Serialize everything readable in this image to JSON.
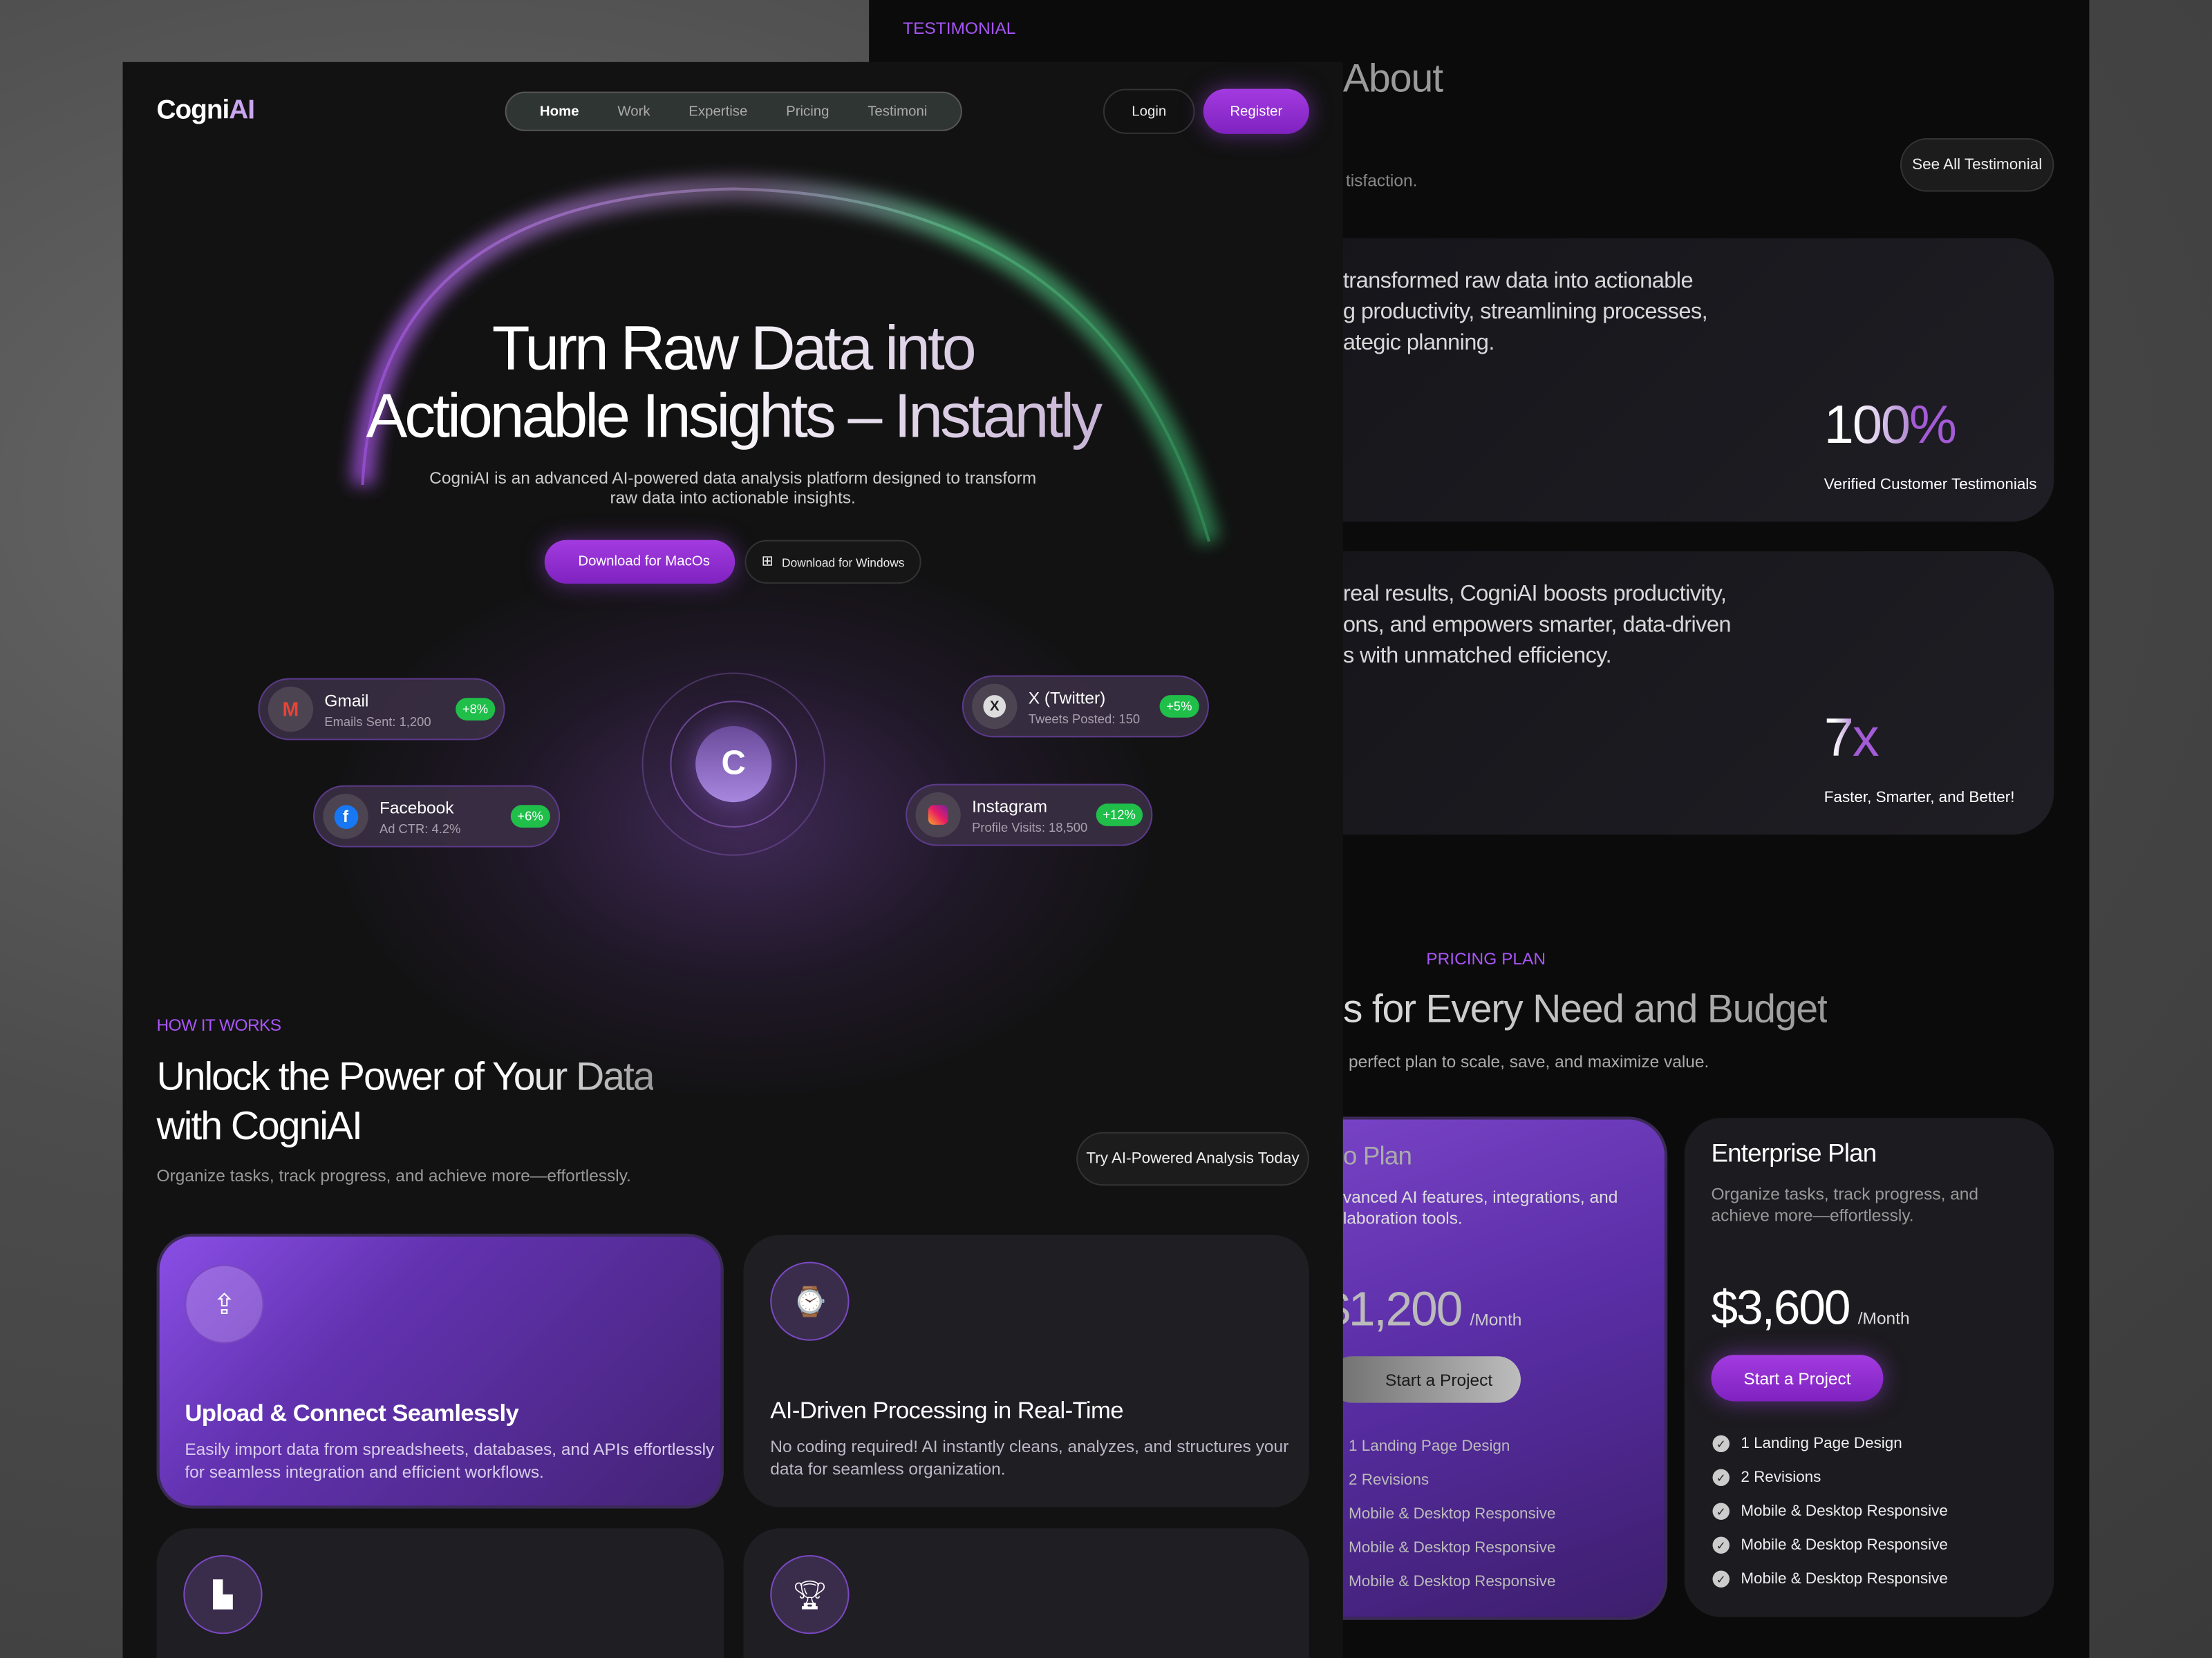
{
  "back_page": {
    "section_label": "TESTIMONIAL",
    "heading_fragment": "About",
    "subtext_fragment": "tisfaction.",
    "see_all_button": "See All Testimonial",
    "testimonials": [
      {
        "lines": [
          "transformed raw data into actionable",
          "g productivity, streamlining processes,",
          "ategic planning."
        ],
        "stat_main": "100",
        "stat_accent": "%",
        "stat_label": "Verified Customer Testimonials"
      },
      {
        "lines": [
          "real results, CogniAI boosts productivity,",
          "ons, and empowers smarter, data-driven",
          "s with unmatched efficiency."
        ],
        "stat_main": "7",
        "stat_accent": "x",
        "stat_label": "Faster, Smarter, and Better!"
      }
    ],
    "pricing": {
      "section_label": "PRICING PLAN",
      "heading_fragment": "s for Every Need and Budget",
      "subtext_fragment": "perfect plan to scale, save, and maximize value.",
      "plans": [
        {
          "name": "o Plan",
          "desc": [
            "vanced AI features, integrations, and",
            "laboration tools."
          ],
          "price": "$1,200",
          "period": "/Month",
          "cta": "Start a Project",
          "features": [
            "1 Landing Page Design",
            "2 Revisions",
            "Mobile & Desktop Responsive",
            "Mobile & Desktop Responsive",
            "Mobile & Desktop Responsive"
          ]
        },
        {
          "name": "Enterprise Plan",
          "desc": [
            "Organize tasks, track progress, and",
            "achieve more—effortlessly."
          ],
          "price": "$3,600",
          "period": "/Month",
          "cta": "Start a Project",
          "features": [
            "1 Landing Page Design",
            "2 Revisions",
            "Mobile & Desktop Responsive",
            "Mobile & Desktop Responsive",
            "Mobile & Desktop Responsive"
          ]
        }
      ]
    }
  },
  "header": {
    "logo_main": "Cogni",
    "logo_accent": "AI",
    "nav": [
      "Home",
      "Work",
      "Expertise",
      "Pricing",
      "Testimoni"
    ],
    "active_nav": "Home",
    "login": "Login",
    "register": "Register"
  },
  "hero": {
    "title_line1": "Turn Raw Data into",
    "title_line2": "Actionable Insights – Instantly",
    "subtitle_line1": "CogniAI is an advanced AI-powered data analysis platform designed to transform",
    "subtitle_line2": "raw data into actionable insights.",
    "mac_button": "Download for MacOs",
    "windows_button": "Download for Windows",
    "integrations": [
      {
        "name": "Gmail",
        "metric": "Emails Sent: 1,200",
        "change": "+8%",
        "icon": "gmail-icon"
      },
      {
        "name": "Facebook",
        "metric": "Ad CTR: 4.2%",
        "change": "+6%",
        "icon": "facebook-icon"
      },
      {
        "name": "X (Twitter)",
        "metric": "Tweets Posted: 150",
        "change": "+5%",
        "icon": "x-twitter-icon"
      },
      {
        "name": "Instagram",
        "metric": "Profile Visits: 18,500",
        "change": "+12%",
        "icon": "instagram-icon"
      }
    ]
  },
  "how_it_works": {
    "label": "HOW IT WORKS",
    "title_line1": "Unlock the Power of Your Data",
    "title_line2": "with CogniAI",
    "subtitle": "Organize tasks, track progress, and achieve more—effortlessly.",
    "cta": "Try AI-Powered Analysis Today",
    "cards": [
      {
        "title": "Upload & Connect Seamlessly",
        "desc": [
          "Easily import data from spreadsheets, databases, and APIs effortlessly",
          "for seamless integration and efficient workflows."
        ],
        "icon": "file-upload-icon"
      },
      {
        "title": "AI-Driven Processing in Real-Time",
        "desc": [
          "No coding required! AI instantly cleans, analyzes, and structures your",
          "data for seamless organization."
        ],
        "icon": "watch-icon"
      },
      {
        "icon": "bar-chart-icon"
      },
      {
        "icon": "trophy-icon"
      }
    ]
  },
  "colors": {
    "accent": "#a855f7",
    "register": "#9b30d9",
    "badge_green": "#1fbf4a",
    "panel": "#121212"
  }
}
